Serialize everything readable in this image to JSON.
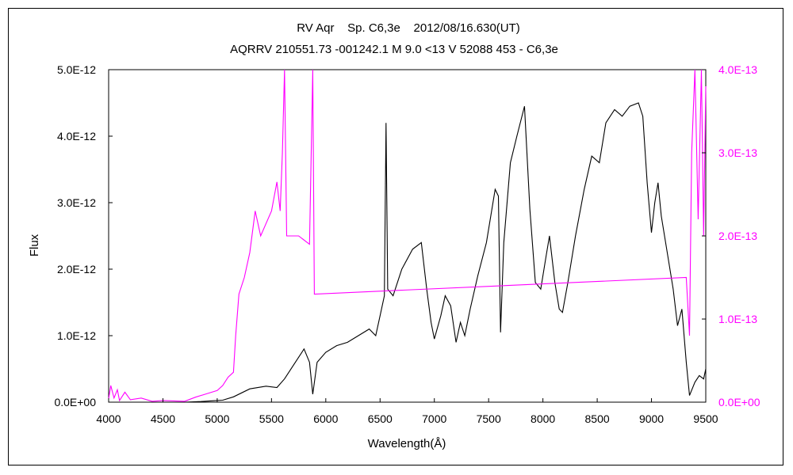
{
  "chart_data": {
    "type": "line",
    "title": "RV Aqr    Sp. C6,3e    2012/08/16.630(UT)",
    "subtitle": "AQRRV 210551.73 -001242.1 M 9.0 <13 V 52088 453 - C6,3e",
    "xlabel": "Wavelength(Å)",
    "ylabel": "Flux",
    "y2label": "",
    "xlim": [
      4000,
      9500
    ],
    "ylim": [
      0,
      5e-12
    ],
    "y2lim": [
      0,
      4e-13
    ],
    "x_ticks": [
      "4000",
      "4500",
      "5000",
      "5500",
      "6000",
      "6500",
      "7000",
      "7500",
      "8000",
      "8500",
      "9000",
      "9500"
    ],
    "y_ticks": [
      "0.0E+00",
      "1.0E-12",
      "2.0E-12",
      "3.0E-12",
      "4.0E-12",
      "5.0E-12"
    ],
    "y2_ticks": [
      "0.0E+00",
      "1.0E-13",
      "2.0E-13",
      "3.0E-13",
      "4.0E-13"
    ],
    "grid": false,
    "colors": {
      "primary": "#000000",
      "secondary": "#ff00ff"
    },
    "series": [
      {
        "axis": "left",
        "color": "#000000",
        "points": [
          [
            4000,
            0
          ],
          [
            4700,
            0
          ],
          [
            4850,
            1e-14
          ],
          [
            4950,
            2e-14
          ],
          [
            5050,
            3e-14
          ],
          [
            5150,
            8e-14
          ],
          [
            5300,
            2e-13
          ],
          [
            5450,
            2.4e-13
          ],
          [
            5550,
            2.2e-13
          ],
          [
            5620,
            3.5e-13
          ],
          [
            5700,
            5.5e-13
          ],
          [
            5800,
            8e-13
          ],
          [
            5850,
            6e-13
          ],
          [
            5880,
            1.2e-13
          ],
          [
            5920,
            6e-13
          ],
          [
            6000,
            7.5e-13
          ],
          [
            6100,
            8.5e-13
          ],
          [
            6200,
            9e-13
          ],
          [
            6300,
            1e-12
          ],
          [
            6400,
            1.1e-12
          ],
          [
            6460,
            1e-12
          ],
          [
            6500,
            1.3e-12
          ],
          [
            6540,
            1.6e-12
          ],
          [
            6555,
            4.2e-12
          ],
          [
            6570,
            1.7e-12
          ],
          [
            6620,
            1.6e-12
          ],
          [
            6700,
            2e-12
          ],
          [
            6800,
            2.3e-12
          ],
          [
            6880,
            2.4e-12
          ],
          [
            6930,
            1.7e-12
          ],
          [
            6970,
            1.2e-12
          ],
          [
            7000,
            9.5e-13
          ],
          [
            7060,
            1.3e-12
          ],
          [
            7100,
            1.6e-12
          ],
          [
            7150,
            1.45e-12
          ],
          [
            7200,
            9e-13
          ],
          [
            7240,
            1.2e-12
          ],
          [
            7280,
            1e-12
          ],
          [
            7330,
            1.4e-12
          ],
          [
            7400,
            1.9e-12
          ],
          [
            7480,
            2.4e-12
          ],
          [
            7560,
            3.2e-12
          ],
          [
            7590,
            3.1e-12
          ],
          [
            7610,
            1.05e-12
          ],
          [
            7640,
            2.4e-12
          ],
          [
            7700,
            3.6e-12
          ],
          [
            7760,
            4e-12
          ],
          [
            7830,
            4.45e-12
          ],
          [
            7880,
            2.9e-12
          ],
          [
            7930,
            1.8e-12
          ],
          [
            7980,
            1.7e-12
          ],
          [
            8030,
            2.2e-12
          ],
          [
            8060,
            2.5e-12
          ],
          [
            8110,
            1.8e-12
          ],
          [
            8150,
            1.4e-12
          ],
          [
            8180,
            1.35e-12
          ],
          [
            8230,
            1.8e-12
          ],
          [
            8300,
            2.5e-12
          ],
          [
            8380,
            3.2e-12
          ],
          [
            8450,
            3.7e-12
          ],
          [
            8520,
            3.6e-12
          ],
          [
            8580,
            4.2e-12
          ],
          [
            8660,
            4.4e-12
          ],
          [
            8730,
            4.3e-12
          ],
          [
            8800,
            4.45e-12
          ],
          [
            8880,
            4.5e-12
          ],
          [
            8920,
            4.3e-12
          ],
          [
            8960,
            3.3e-12
          ],
          [
            9000,
            2.55e-12
          ],
          [
            9030,
            3e-12
          ],
          [
            9060,
            3.3e-12
          ],
          [
            9090,
            2.8e-12
          ],
          [
            9150,
            2.2e-12
          ],
          [
            9200,
            1.7e-12
          ],
          [
            9240,
            1.15e-12
          ],
          [
            9280,
            1.4e-12
          ],
          [
            9320,
            6e-13
          ],
          [
            9350,
            1e-13
          ],
          [
            9400,
            3e-13
          ],
          [
            9440,
            4e-13
          ],
          [
            9480,
            3.5e-13
          ],
          [
            9500,
            5e-13
          ]
        ]
      },
      {
        "axis": "right",
        "color": "#ff00ff",
        "points": [
          [
            4000,
            4e-15
          ],
          [
            4020,
            2e-14
          ],
          [
            4050,
            5e-15
          ],
          [
            4080,
            1.5e-14
          ],
          [
            4100,
            2e-15
          ],
          [
            4150,
            1.2e-14
          ],
          [
            4200,
            3e-15
          ],
          [
            4300,
            5e-15
          ],
          [
            4400,
            1e-15
          ],
          [
            4500,
            2e-15
          ],
          [
            4700,
            1e-15
          ],
          [
            4800,
            6e-15
          ],
          [
            4900,
            1e-14
          ],
          [
            5000,
            1.4e-14
          ],
          [
            5050,
            2e-14
          ],
          [
            5100,
            3e-14
          ],
          [
            5150,
            3.6e-14
          ],
          [
            5170,
            8e-14
          ],
          [
            5200,
            1.3e-13
          ],
          [
            5250,
            1.5e-13
          ],
          [
            5300,
            1.8e-13
          ],
          [
            5350,
            2.3e-13
          ],
          [
            5400,
            2e-13
          ],
          [
            5450,
            2.15e-13
          ],
          [
            5500,
            2.3e-13
          ],
          [
            5550,
            2.65e-13
          ],
          [
            5580,
            2.3e-13
          ],
          [
            5600,
            3e-13
          ],
          [
            5620,
            4e-13
          ],
          [
            5640,
            2e-13
          ],
          [
            5700,
            2e-13
          ],
          [
            5750,
            2e-13
          ],
          [
            5850,
            1.9e-13
          ],
          [
            5880,
            4e-13
          ],
          [
            5895,
            1.3e-13
          ],
          [
            9320,
            1.5e-13
          ],
          [
            9350,
            8e-14
          ],
          [
            9370,
            3e-13
          ],
          [
            9400,
            4e-13
          ],
          [
            9430,
            2.2e-13
          ],
          [
            9460,
            4e-13
          ],
          [
            9480,
            2e-13
          ],
          [
            9500,
            3.8e-13
          ]
        ]
      }
    ]
  }
}
